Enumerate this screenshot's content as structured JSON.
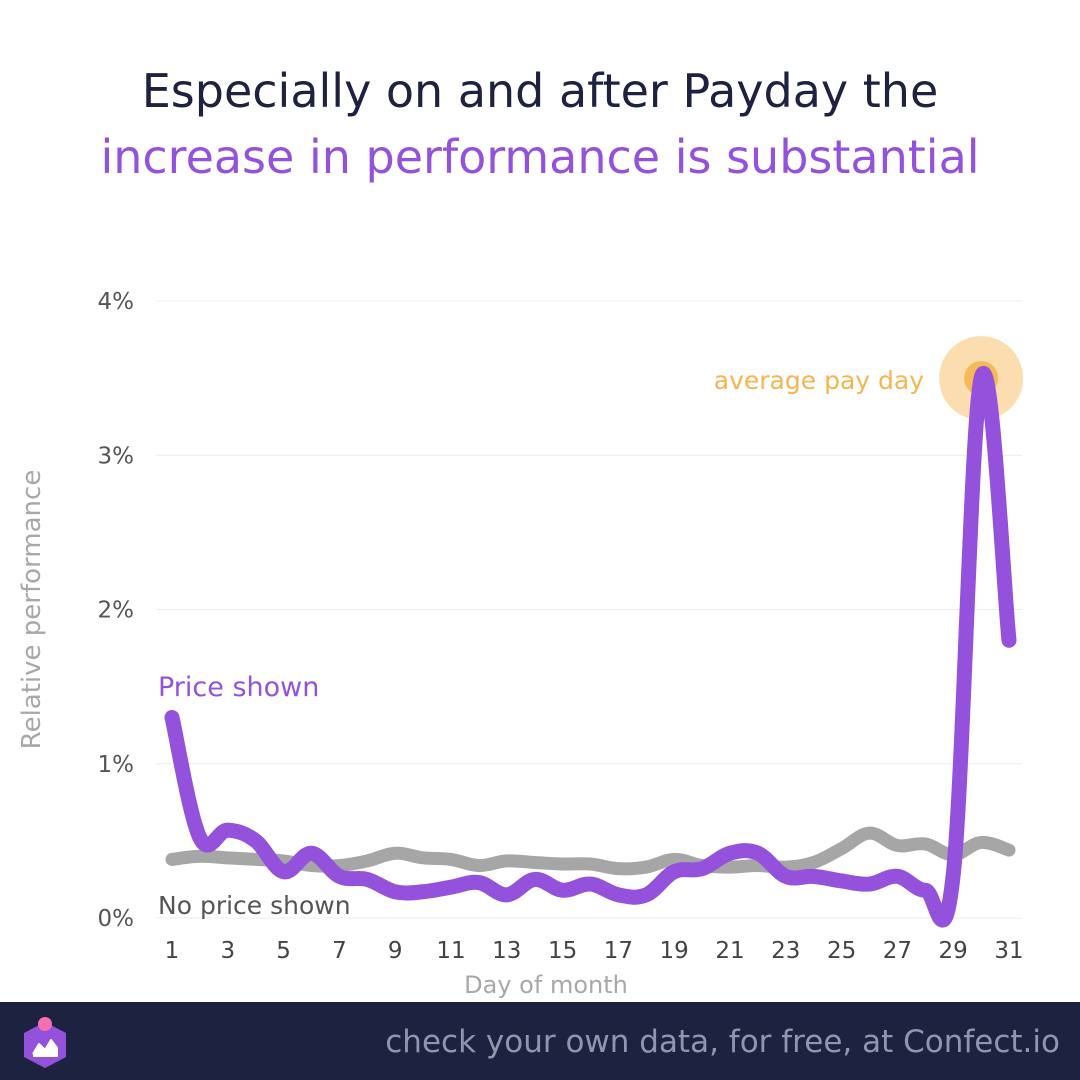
{
  "title": {
    "line1": "Especially on and after Payday the",
    "line2": "increase in performance is substantial"
  },
  "colors": {
    "title": "#1c2240",
    "accent": "#9452dc",
    "grey_series": "#a6a6a6",
    "highlight": "#f6b44e",
    "footer_bg": "#1c2240"
  },
  "chart_data": {
    "type": "line",
    "xlabel": "Day of month",
    "ylabel": "Relative performance",
    "x_ticks": [
      "1",
      "3",
      "5",
      "7",
      "9",
      "11",
      "13",
      "15",
      "17",
      "19",
      "21",
      "23",
      "25",
      "27",
      "29",
      "31"
    ],
    "y_ticks": [
      "0%",
      "1%",
      "2%",
      "3%",
      "4%"
    ],
    "xlim": [
      1,
      31
    ],
    "ylim": [
      0,
      4
    ],
    "grid": true,
    "series": [
      {
        "name": "Price shown",
        "x": [
          1,
          2,
          3,
          4,
          5,
          6,
          7,
          8,
          9,
          10,
          11,
          12,
          13,
          14,
          15,
          16,
          17,
          18,
          19,
          20,
          21,
          22,
          23,
          24,
          25,
          26,
          27,
          28,
          29,
          30,
          31
        ],
        "values": [
          1.3,
          0.52,
          0.57,
          0.5,
          0.3,
          0.42,
          0.27,
          0.25,
          0.17,
          0.17,
          0.2,
          0.23,
          0.15,
          0.25,
          0.18,
          0.22,
          0.15,
          0.15,
          0.3,
          0.32,
          0.42,
          0.42,
          0.27,
          0.27,
          0.24,
          0.22,
          0.27,
          0.18,
          0.28,
          3.5,
          1.8
        ]
      },
      {
        "name": "No price shown",
        "x": [
          1,
          2,
          3,
          4,
          5,
          6,
          7,
          8,
          9,
          10,
          11,
          12,
          13,
          14,
          15,
          16,
          17,
          18,
          19,
          20,
          21,
          22,
          23,
          24,
          25,
          26,
          27,
          28,
          29,
          30,
          31
        ],
        "values": [
          0.38,
          0.4,
          0.39,
          0.38,
          0.37,
          0.34,
          0.34,
          0.37,
          0.42,
          0.39,
          0.38,
          0.34,
          0.37,
          0.36,
          0.35,
          0.35,
          0.32,
          0.33,
          0.38,
          0.34,
          0.33,
          0.34,
          0.33,
          0.36,
          0.45,
          0.55,
          0.47,
          0.48,
          0.41,
          0.49,
          0.44
        ]
      }
    ],
    "annotation": {
      "text": "average pay day",
      "x": 30,
      "y": 3.5
    }
  },
  "footer": {
    "text": "check your own data, for free, at Confect.io"
  }
}
